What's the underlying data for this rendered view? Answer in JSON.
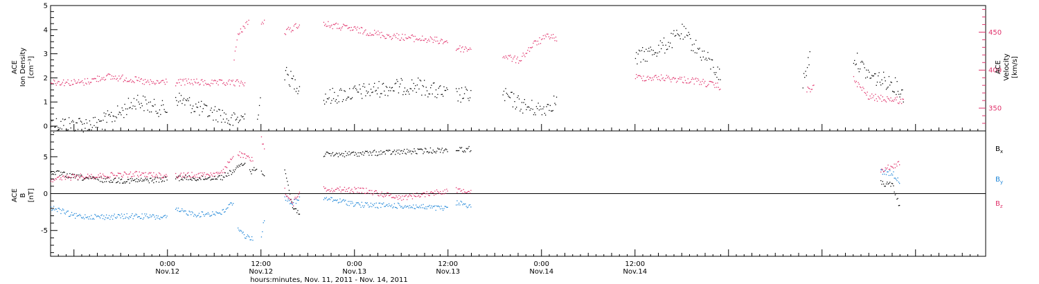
{
  "colors": {
    "black": "#000000",
    "pink": "#e0306a",
    "blue": "#1e86d8"
  },
  "chart_data": [
    {
      "type": "scatter",
      "panel": "top",
      "ylabel_left": [
        "ACE",
        "Ion Density",
        "[cm⁻³]"
      ],
      "ylabel_right": [
        "ACE",
        "Velocity",
        "[km/s]"
      ],
      "ylim_left": [
        -0.2,
        5.0
      ],
      "yticks_left": [
        "0",
        "1",
        "2",
        "3",
        "4",
        "5"
      ],
      "ylim_right": [
        320,
        485
      ],
      "yticks_right": [
        "350",
        "400",
        "450"
      ],
      "xlim_hours": [
        -15,
        105
      ],
      "series": [
        {
          "color": "black",
          "axis": "left",
          "segments": [
            {
              "x": [
                -15,
                -12,
                -9,
                -6,
                -4,
                -2,
                0
              ],
              "y": [
                0.1,
                0.1,
                0.1,
                0.6,
                1.1,
                0.8,
                0.7
              ]
            },
            {
              "x": [
                1,
                3,
                5,
                7,
                8,
                10
              ],
              "y": [
                1.2,
                0.9,
                0.6,
                0.5,
                0.2,
                0.4
              ]
            },
            {
              "x": [
                11.5,
                12
              ],
              "y": [
                0.6,
                1.3
              ]
            },
            {
              "x": [
                15,
                16,
                17
              ],
              "y": [
                2.2,
                1.9,
                1.6
              ]
            },
            {
              "x": [
                20,
                24,
                28,
                32,
                36
              ],
              "y": [
                1.2,
                1.4,
                1.6,
                1.7,
                1.3
              ]
            },
            {
              "x": [
                37,
                39
              ],
              "y": [
                1.3,
                1.3
              ]
            },
            {
              "x": [
                43,
                46,
                48,
                50
              ],
              "y": [
                1.3,
                0.8,
                0.7,
                1.1
              ]
            },
            {
              "x": [
                60,
                64,
                66,
                68,
                70,
                71
              ],
              "y": [
                2.8,
                3.4,
                3.9,
                3.2,
                2.5,
                2.0
              ]
            },
            {
              "x": [
                81.5,
                82.5
              ],
              "y": [
                1.8,
                3.1
              ]
            },
            {
              "x": [
                88,
                90,
                93,
                94.5
              ],
              "y": [
                2.9,
                2.1,
                1.8,
                1.3
              ]
            }
          ]
        },
        {
          "color": "pink",
          "axis": "right",
          "segments": [
            {
              "x": [
                -15,
                -11,
                -8,
                -5,
                -2,
                0
              ],
              "y": [
                385,
                384,
                392,
                389,
                383,
                386
              ]
            },
            {
              "x": [
                1,
                3,
                6,
                8,
                10
              ],
              "y": [
                384,
                385,
                383,
                384,
                383
              ]
            },
            {
              "x": [
                8.5,
                9,
                10,
                10.5
              ],
              "y": [
                418,
                445,
                462,
                464
              ]
            },
            {
              "x": [
                12,
                12.5
              ],
              "y": [
                462,
                464
              ]
            },
            {
              "x": [
                15,
                17
              ],
              "y": [
                450,
                462
              ]
            },
            {
              "x": [
                20,
                24,
                28,
                33,
                36
              ],
              "y": [
                461,
                454,
                446,
                441,
                438
              ]
            },
            {
              "x": [
                37,
                39
              ],
              "y": [
                429,
                428
              ]
            },
            {
              "x": [
                43,
                45,
                47,
                49,
                50
              ],
              "y": [
                420,
                413,
                435,
                446,
                441
              ]
            },
            {
              "x": [
                60,
                64,
                68,
                71
              ],
              "y": [
                391,
                390,
                386,
                378
              ]
            },
            {
              "x": [
                82,
                83
              ],
              "y": [
                373,
                380
              ]
            },
            {
              "x": [
                88,
                90,
                93,
                94.5
              ],
              "y": [
                388,
                365,
                362,
                359
              ]
            }
          ]
        }
      ]
    },
    {
      "type": "scatter",
      "panel": "bottom",
      "ylabel_left": [
        "ACE",
        "B",
        "[nT]"
      ],
      "ylim_left": [
        -8.5,
        8.5
      ],
      "yticks_left": [
        "-5",
        "0",
        "5"
      ],
      "xlim_hours": [
        -15,
        105
      ],
      "legend": [
        {
          "base": "B",
          "sub": "x",
          "color": "black"
        },
        {
          "base": "B",
          "sub": "y",
          "color": "blue"
        },
        {
          "base": "B",
          "sub": "z",
          "color": "pink"
        }
      ],
      "series": [
        {
          "color": "black",
          "segments": [
            {
              "x": [
                -15,
                -12,
                -8,
                -4,
                0
              ],
              "y": [
                3.0,
                2.3,
                1.9,
                1.8,
                2.0
              ]
            },
            {
              "x": [
                1,
                4,
                7,
                9,
                10
              ],
              "y": [
                2.2,
                2.1,
                2.3,
                3.5,
                4.5
              ]
            },
            {
              "x": [
                10.5,
                11.5
              ],
              "y": [
                3.0,
                3.5
              ]
            },
            {
              "x": [
                12,
                12.5
              ],
              "y": [
                3.0,
                2.8
              ]
            },
            {
              "x": [
                15,
                16,
                17
              ],
              "y": [
                3.5,
                -1.8,
                -2.6
              ]
            },
            {
              "x": [
                20,
                25,
                30,
                36
              ],
              "y": [
                5.3,
                5.5,
                5.7,
                6.0
              ]
            },
            {
              "x": [
                37,
                39
              ],
              "y": [
                6.0,
                6.1
              ]
            },
            {
              "x": [
                91.5,
                93,
                94
              ],
              "y": [
                1.5,
                1.2,
                -2.0
              ]
            }
          ]
        },
        {
          "color": "blue",
          "segments": [
            {
              "x": [
                -15,
                -12,
                -8,
                -4,
                0
              ],
              "y": [
                -1.8,
                -3.0,
                -3.1,
                -3.0,
                -3.2
              ]
            },
            {
              "x": [
                1,
                4,
                7,
                8.5
              ],
              "y": [
                -2.2,
                -2.8,
                -2.5,
                -1.0
              ]
            },
            {
              "x": [
                9,
                10,
                11
              ],
              "y": [
                -4.5,
                -5.8,
                -6.0
              ]
            },
            {
              "x": [
                12,
                12.5
              ],
              "y": [
                -5.5,
                -3.0
              ]
            },
            {
              "x": [
                15,
                16,
                17
              ],
              "y": [
                -0.5,
                -1.2,
                -0.7
              ]
            },
            {
              "x": [
                20,
                25,
                30,
                36
              ],
              "y": [
                -0.6,
                -1.5,
                -1.6,
                -2.0
              ]
            },
            {
              "x": [
                37,
                39
              ],
              "y": [
                -1.2,
                -1.6
              ]
            },
            {
              "x": [
                91.5,
                93,
                94
              ],
              "y": [
                3.0,
                2.8,
                1.5
              ]
            }
          ]
        },
        {
          "color": "pink",
          "segments": [
            {
              "x": [
                -15,
                -12,
                -8,
                -4,
                0
              ],
              "y": [
                2.0,
                2.3,
                2.5,
                2.7,
                2.5
              ]
            },
            {
              "x": [
                1,
                4,
                7,
                8.5
              ],
              "y": [
                2.5,
                2.6,
                2.8,
                5.5
              ]
            },
            {
              "x": [
                9,
                10,
                11
              ],
              "y": [
                5.5,
                5.0,
                4.5
              ]
            },
            {
              "x": [
                12,
                12.5
              ],
              "y": [
                7.5,
                6.0
              ]
            },
            {
              "x": [
                15,
                16,
                17
              ],
              "y": [
                0.5,
                -1.5,
                0.7
              ]
            },
            {
              "x": [
                20,
                25,
                30,
                36
              ],
              "y": [
                0.7,
                0.5,
                -0.5,
                0.5
              ]
            },
            {
              "x": [
                37,
                39
              ],
              "y": [
                0.5,
                0.5
              ]
            },
            {
              "x": [
                91.5,
                93,
                94
              ],
              "y": [
                3.2,
                3.8,
                4.2
              ]
            }
          ]
        }
      ]
    }
  ],
  "x_axis": {
    "ticks": [
      {
        "hour": 0,
        "time": "0:00",
        "date": "Nov.12"
      },
      {
        "hour": 12,
        "time": "12:00",
        "date": "Nov.12"
      },
      {
        "hour": 24,
        "time": "0:00",
        "date": "Nov.13"
      },
      {
        "hour": 36,
        "time": "12:00",
        "date": "Nov.13"
      },
      {
        "hour": 48,
        "time": "0:00",
        "date": "Nov.14"
      },
      {
        "hour": 60,
        "time": "12:00",
        "date": "Nov.14"
      }
    ],
    "label": "hours:minutes, Nov. 11, 2011 - Nov. 14, 2011"
  }
}
